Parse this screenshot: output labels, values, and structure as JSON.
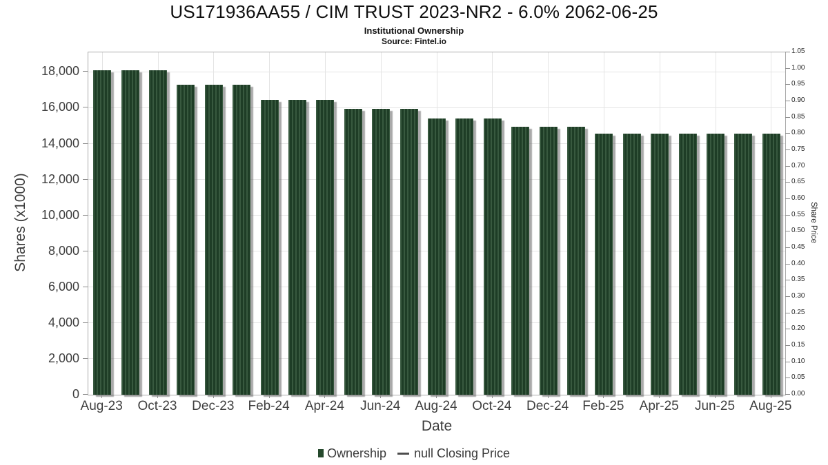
{
  "header": {
    "title": "US171936AA55 / CIM TRUST 2023-NR2 - 6.0% 2062-06-25",
    "subtitle": "Institutional Ownership",
    "source": "Source: Fintel.io"
  },
  "chart_data": {
    "type": "bar",
    "title": "US171936AA55 / CIM TRUST 2023-NR2 - 6.0% 2062-06-25",
    "xlabel": "Date",
    "ylabel_left": "Shares (x1000)",
    "ylabel_right": "Share Price",
    "x": [
      "Aug-23",
      "Sep-23",
      "Oct-23",
      "Nov-23",
      "Dec-23",
      "Jan-24",
      "Feb-24",
      "Mar-24",
      "Apr-24",
      "May-24",
      "Jun-24",
      "Jul-24",
      "Aug-24",
      "Sep-24",
      "Oct-24",
      "Nov-24",
      "Dec-24",
      "Jan-25",
      "Feb-25",
      "Mar-25",
      "Apr-25",
      "May-25",
      "Jun-25",
      "Jul-25",
      "Aug-25"
    ],
    "series": [
      {
        "name": "Ownership",
        "values": [
          18100,
          18100,
          18100,
          17300,
          17300,
          17300,
          16450,
          16450,
          16450,
          15950,
          15950,
          15950,
          15400,
          15400,
          15400,
          14950,
          14950,
          14950,
          14550,
          14550,
          14550,
          14550,
          14550,
          14550,
          14550
        ]
      },
      {
        "name": "null Closing Price",
        "values": []
      }
    ],
    "x_tick_labels": [
      "Aug-23",
      "Oct-23",
      "Dec-23",
      "Feb-24",
      "Apr-24",
      "Jun-24",
      "Aug-24",
      "Oct-24",
      "Dec-24",
      "Feb-25",
      "Apr-25",
      "Jun-25",
      "Aug-25"
    ],
    "left_ticks": [
      {
        "value": 0,
        "label": "0"
      },
      {
        "value": 2000,
        "label": "2,000"
      },
      {
        "value": 4000,
        "label": "4,000"
      },
      {
        "value": 6000,
        "label": "6,000"
      },
      {
        "value": 8000,
        "label": "8,000"
      },
      {
        "value": 10000,
        "label": "10,000"
      },
      {
        "value": 12000,
        "label": "12,000"
      },
      {
        "value": 14000,
        "label": "14,000"
      },
      {
        "value": 16000,
        "label": "16,000"
      },
      {
        "value": 18000,
        "label": "18,000"
      }
    ],
    "right_ticks": [
      "0.00",
      "0.05",
      "0.10",
      "0.15",
      "0.20",
      "0.25",
      "0.30",
      "0.35",
      "0.40",
      "0.45",
      "0.50",
      "0.55",
      "0.60",
      "0.65",
      "0.70",
      "0.75",
      "0.80",
      "0.85",
      "0.90",
      "0.95",
      "1.00",
      "1.05"
    ],
    "ylim_left": [
      0,
      19090
    ],
    "ylim_right": [
      0,
      1.05
    ],
    "grid": true,
    "legend_position": "bottom"
  },
  "legend": {
    "items": [
      {
        "label": "Ownership",
        "marker": "square",
        "color": "#25492c"
      },
      {
        "label": "null Closing Price",
        "marker": "dash",
        "color": "#4d4d4d"
      }
    ]
  },
  "colors": {
    "bar_stripe_light": "#38593f",
    "bar_stripe_dark": "#1e3d26",
    "gridline": "#e4e4e4",
    "axis_border": "#a9a9a9"
  }
}
